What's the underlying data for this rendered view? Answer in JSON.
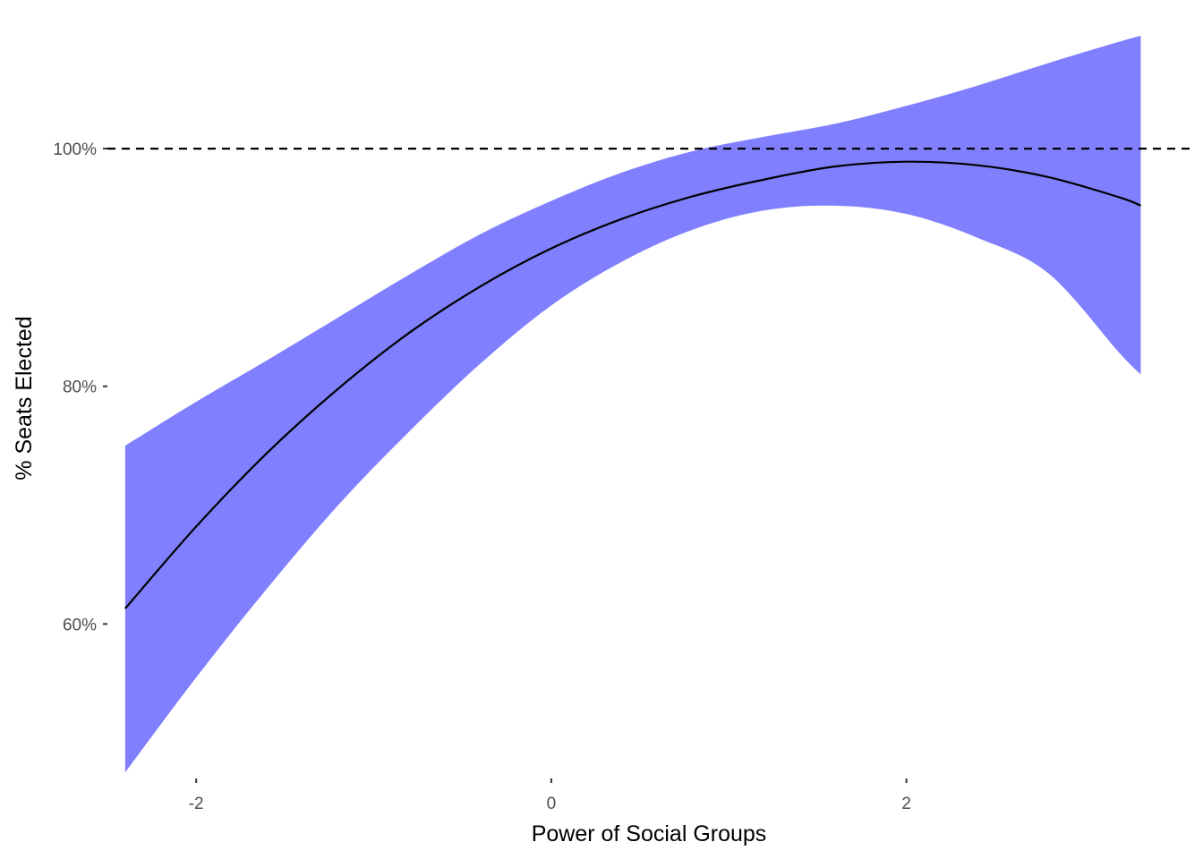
{
  "chart_data": {
    "type": "line",
    "xlabel": "Power of Social Groups",
    "ylabel": "% Seats Elected",
    "xlim": [
      -2.5,
      3.6
    ],
    "ylim": [
      47,
      111
    ],
    "x_ticks": [
      {
        "value": -2,
        "label": "-2"
      },
      {
        "value": 0,
        "label": "0"
      },
      {
        "value": 2,
        "label": "2"
      }
    ],
    "y_ticks": [
      {
        "value": 60,
        "label": "60%"
      },
      {
        "value": 80,
        "label": "80%"
      },
      {
        "value": 100,
        "label": "100%"
      }
    ],
    "reference_line": {
      "y": 100,
      "style": "dashed",
      "color": "#000000"
    },
    "grid": false,
    "legend": "none",
    "series": [
      {
        "role": "fit",
        "color": "#000000",
        "x": [
          -2.4,
          -2.0,
          -1.6,
          -1.2,
          -0.8,
          -0.4,
          0.0,
          0.4,
          0.8,
          1.2,
          1.6,
          2.0,
          2.4,
          2.8,
          3.2,
          3.32
        ],
        "values": [
          61.3,
          68.2,
          74.4,
          79.8,
          84.5,
          88.4,
          91.6,
          94.1,
          96.0,
          97.4,
          98.5,
          98.9,
          98.6,
          97.6,
          95.9,
          95.2
        ]
      }
    ],
    "band": {
      "role": "confidence-interval",
      "color": "#8080ff",
      "x": [
        -2.4,
        -2.0,
        -1.6,
        -1.2,
        -0.8,
        -0.4,
        0.0,
        0.4,
        0.8,
        1.2,
        1.6,
        2.0,
        2.4,
        2.8,
        3.2,
        3.32
      ],
      "lower": [
        47.5,
        55.5,
        63.0,
        70.0,
        76.2,
        81.9,
        86.8,
        90.5,
        93.2,
        94.8,
        95.2,
        94.5,
        92.5,
        89.5,
        82.8,
        81.0
      ],
      "upper": [
        75.0,
        78.7,
        82.2,
        85.8,
        89.4,
        92.8,
        95.6,
        98.0,
        99.8,
        101.0,
        102.1,
        103.6,
        105.3,
        107.2,
        109.0,
        109.5
      ]
    }
  }
}
